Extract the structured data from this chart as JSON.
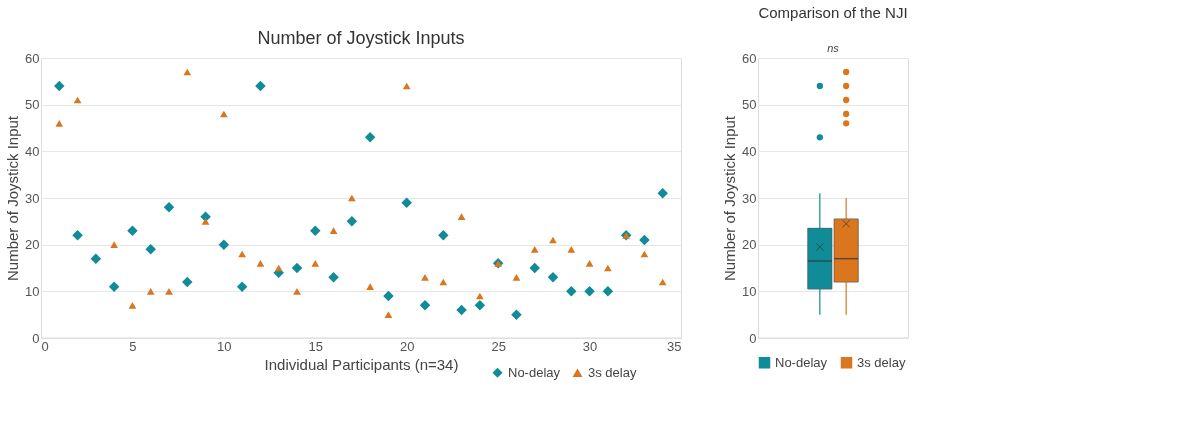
{
  "chart_data": [
    {
      "type": "scatter",
      "title": "Number of Joystick Inputs",
      "xlabel": "Individual Participants (n=34)",
      "ylabel": "Number of Joystick Input",
      "x": [
        1,
        2,
        3,
        4,
        5,
        6,
        7,
        8,
        9,
        10,
        11,
        12,
        13,
        14,
        15,
        16,
        17,
        18,
        19,
        20,
        21,
        22,
        23,
        24,
        25,
        26,
        27,
        28,
        29,
        30,
        31,
        32,
        33,
        34
      ],
      "series": [
        {
          "name": "No-delay",
          "color": "#0f8c98",
          "marker": "diamond",
          "values": [
            54,
            22,
            17,
            11,
            23,
            19,
            28,
            12,
            26,
            20,
            11,
            54,
            14,
            15,
            23,
            13,
            25,
            43,
            9,
            29,
            7,
            22,
            6,
            7,
            16,
            5,
            15,
            13,
            10,
            10,
            10,
            22,
            21,
            31
          ]
        },
        {
          "name": "3s delay",
          "color": "#d9761e",
          "marker": "triangle",
          "values": [
            46,
            51,
            null,
            20,
            7,
            10,
            10,
            57,
            25,
            48,
            18,
            16,
            15,
            10,
            16,
            23,
            30,
            11,
            5,
            54,
            13,
            12,
            26,
            9,
            16,
            13,
            19,
            21,
            19,
            16,
            15,
            22,
            18,
            12
          ]
        }
      ],
      "xlim": [
        0,
        35
      ],
      "xticks": [
        0,
        5,
        10,
        15,
        20,
        25,
        30,
        35
      ],
      "ylim": [
        0,
        60
      ],
      "yticks": [
        0,
        10,
        20,
        30,
        40,
        50,
        60
      ],
      "grid": "y",
      "legend": "bottom right"
    },
    {
      "type": "box",
      "title": "Comparison of the NJI",
      "ylabel": "Number of Joystick Input",
      "categories": [
        null
      ],
      "series": [
        {
          "name": "No-delay",
          "color": "#0f8c98",
          "boxes": [
            {
              "low": 5,
              "q1": 10.5,
              "median": 16.5,
              "q3": 23.5,
              "high": 31,
              "mean": 19.5,
              "outliers": [
                43,
                54
              ]
            }
          ]
        },
        {
          "name": "3s delay",
          "color": "#d9761e",
          "boxes": [
            {
              "low": 5,
              "q1": 12,
              "median": 17,
              "q3": 25.5,
              "high": 30,
              "mean": 24.5,
              "outliers": [
                46,
                48,
                51,
                54,
                57
              ]
            }
          ]
        }
      ],
      "ylim": [
        0,
        60
      ],
      "yticks": [
        0,
        10,
        20,
        30,
        40,
        50,
        60
      ],
      "grid": "y",
      "legend": "bottom",
      "tick_labels": "y",
      "annotations": [
        "ns"
      ]
    }
  ]
}
